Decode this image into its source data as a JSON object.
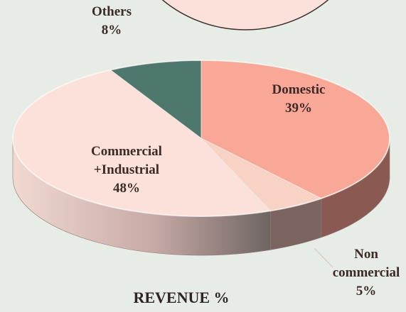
{
  "chart_data": {
    "type": "pie",
    "title": "REVENUE %",
    "categories": [
      "Domestic",
      "Non\ncommercial",
      "Commercial\n+Industrial",
      "Others"
    ],
    "values": [
      39,
      5,
      48,
      8
    ],
    "value_labels": [
      "39%",
      "5%",
      "48%",
      "8%"
    ],
    "colors": [
      "#f9a898",
      "#f8d2c4",
      "#fbe1d9",
      "#4e786d"
    ]
  }
}
